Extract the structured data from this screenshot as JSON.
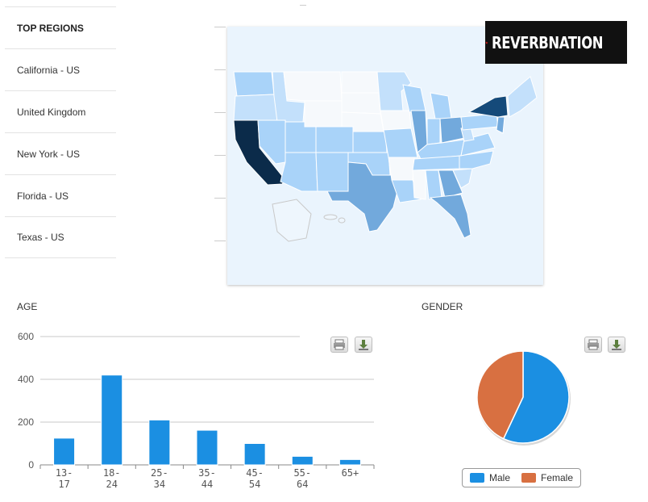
{
  "top_regions": {
    "heading": "TOP REGIONS",
    "items": [
      "California - US",
      "United Kingdom",
      "New York - US",
      "Florida - US",
      "Texas - US"
    ]
  },
  "logo": {
    "text": "REVERBNATION",
    "star_color": "#e0201b"
  },
  "colors": {
    "male": "#1b8fe2",
    "female": "#d87041",
    "bar": "#1b8fe2",
    "map_darkest": "#0b2b4a",
    "map_dark": "#154a7a",
    "map_mid": "#72a9dc",
    "map_light": "#a9d3f9",
    "map_pale": "#d4e7f8",
    "map_empty": "#f6f9fc"
  },
  "chart_data": [
    {
      "type": "bar",
      "title": "AGE",
      "categories": [
        "13-17",
        "18-24",
        "25-34",
        "35-44",
        "45-54",
        "55-64",
        "65+"
      ],
      "values": [
        125,
        420,
        210,
        162,
        100,
        40,
        25
      ],
      "ylim": [
        0,
        600
      ],
      "yticks": [
        0,
        200,
        400,
        600
      ],
      "grid": true
    },
    {
      "type": "pie",
      "title": "GENDER",
      "labels": [
        "Male",
        "Female"
      ],
      "values": [
        57,
        43
      ],
      "legend": "bottom"
    }
  ]
}
